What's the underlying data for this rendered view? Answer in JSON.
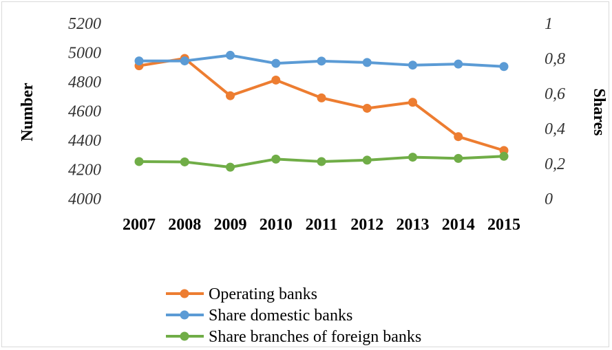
{
  "chart_data": {
    "type": "line",
    "title": "",
    "categories": [
      "2007",
      "2008",
      "2009",
      "2010",
      "2011",
      "2012",
      "2013",
      "2014",
      "2015"
    ],
    "y_left": {
      "label": "Number",
      "range": [
        4000,
        5200
      ],
      "ticks": [
        "4000",
        "4200",
        "4400",
        "4600",
        "4800",
        "5000",
        "5200"
      ],
      "tick_values": [
        4000,
        4200,
        4400,
        4600,
        4800,
        5000,
        5200
      ]
    },
    "y_right": {
      "label": "Shares",
      "range": [
        0,
        1
      ],
      "ticks": [
        "0",
        "0,2",
        "0,4",
        "0,6",
        "0,8",
        "1"
      ],
      "tick_values": [
        0,
        0.2,
        0.4,
        0.6,
        0.8,
        1
      ]
    },
    "series": [
      {
        "name": "Operating banks",
        "axis": "left",
        "color": "#ED7D31",
        "values": [
          4910,
          4960,
          4705,
          4812,
          4690,
          4619,
          4660,
          4425,
          4330
        ]
      },
      {
        "name": "Share domestic banks",
        "axis": "right",
        "color": "#5B9BD5",
        "values": [
          0.786,
          0.786,
          0.818,
          0.772,
          0.785,
          0.777,
          0.762,
          0.768,
          0.754
        ]
      },
      {
        "name": "Share branches of foreign banks",
        "axis": "right",
        "color": "#70AD47",
        "values": [
          0.212,
          0.21,
          0.18,
          0.226,
          0.212,
          0.22,
          0.237,
          0.23,
          0.242
        ]
      }
    ],
    "grid": false,
    "legend_position": "bottom"
  }
}
